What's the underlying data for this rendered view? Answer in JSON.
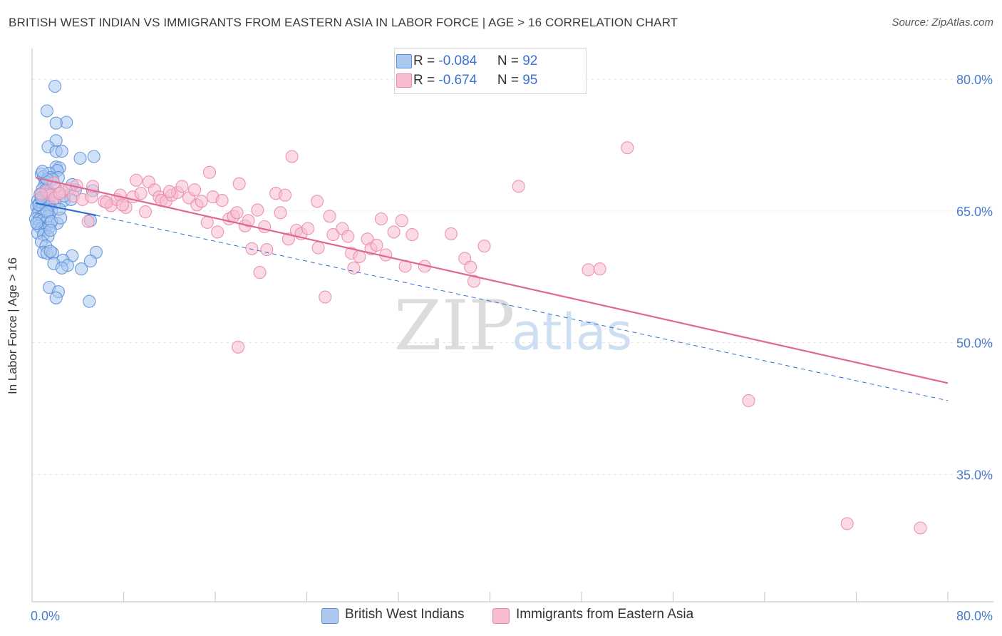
{
  "header": {
    "title": "BRITISH WEST INDIAN VS IMMIGRANTS FROM EASTERN ASIA IN LABOR FORCE | AGE > 16 CORRELATION CHART",
    "source": "Source: ZipAtlas.com"
  },
  "legend": {
    "series1": {
      "r_label": "R = ",
      "r_value": "-0.084",
      "n_label": "N = ",
      "n_value": "92"
    },
    "series2": {
      "r_label": "R = ",
      "r_value": "-0.674",
      "n_label": "N = ",
      "n_value": "95"
    }
  },
  "watermark": {
    "zip": "ZIP",
    "atlas": "atlas"
  },
  "colors": {
    "blue_fill": "#aac8f0",
    "blue_stroke": "#5b8fd8",
    "blue_line": "#2f6fd0",
    "pink_fill": "#f7bcd0",
    "pink_stroke": "#e889ab",
    "pink_line": "#e0678f",
    "axis_text": "#4a7bd0"
  },
  "chart_data": {
    "type": "scatter",
    "title": "BRITISH WEST INDIAN VS IMMIGRANTS FROM EASTERN ASIA IN LABOR FORCE | AGE > 16 CORRELATION CHART",
    "xlabel": "",
    "ylabel": "In Labor Force | Age > 16",
    "xlim": [
      0,
      80
    ],
    "ylim": [
      20.5,
      83.5
    ],
    "x_tick_labels": [
      "0.0%",
      "80.0%"
    ],
    "y_ticks": [
      35,
      50,
      65,
      80
    ],
    "y_tick_labels": [
      "35.0%",
      "50.0%",
      "65.0%",
      "80.0%"
    ],
    "grid": true,
    "series": [
      {
        "name": "British West Indians",
        "r": -0.084,
        "n": 92,
        "points": [
          [
            2.0,
            79.2
          ],
          [
            1.3,
            76.4
          ],
          [
            3.0,
            75.1
          ],
          [
            2.1,
            75.0
          ],
          [
            2.1,
            73.0
          ],
          [
            1.4,
            72.3
          ],
          [
            2.1,
            71.8
          ],
          [
            2.6,
            71.8
          ],
          [
            4.2,
            71.0
          ],
          [
            5.4,
            71.2
          ],
          [
            2.1,
            70.0
          ],
          [
            2.4,
            69.9
          ],
          [
            2.2,
            69.6
          ],
          [
            0.8,
            69.2
          ],
          [
            1.0,
            68.9
          ],
          [
            1.5,
            69.3
          ],
          [
            1.6,
            68.8
          ],
          [
            2.3,
            68.8
          ],
          [
            1.8,
            68.6
          ],
          [
            1.2,
            68.3
          ],
          [
            1.1,
            68.0
          ],
          [
            0.9,
            67.5
          ],
          [
            1.2,
            67.4
          ],
          [
            1.5,
            67.2
          ],
          [
            3.8,
            67.4
          ],
          [
            3.5,
            68.0
          ],
          [
            5.3,
            67.3
          ],
          [
            0.7,
            66.9
          ],
          [
            1.0,
            66.4
          ],
          [
            1.4,
            66.9
          ],
          [
            0.5,
            66.2
          ],
          [
            0.7,
            66.0
          ],
          [
            1.0,
            65.8
          ],
          [
            1.4,
            65.9
          ],
          [
            1.8,
            66.1
          ],
          [
            2.0,
            65.9
          ],
          [
            2.8,
            66.2
          ],
          [
            3.4,
            66.3
          ],
          [
            0.4,
            65.5
          ],
          [
            0.6,
            65.0
          ],
          [
            0.9,
            65.3
          ],
          [
            1.2,
            65.2
          ],
          [
            1.5,
            65.6
          ],
          [
            1.7,
            65.1
          ],
          [
            0.5,
            64.7
          ],
          [
            0.8,
            64.4
          ],
          [
            1.1,
            64.7
          ],
          [
            1.4,
            64.4
          ],
          [
            0.3,
            64.1
          ],
          [
            0.6,
            64.0
          ],
          [
            0.9,
            63.9
          ],
          [
            1.2,
            63.7
          ],
          [
            1.6,
            63.6
          ],
          [
            2.2,
            63.6
          ],
          [
            5.1,
            63.9
          ],
          [
            0.6,
            63.3
          ],
          [
            0.8,
            63.0
          ],
          [
            1.1,
            62.9
          ],
          [
            1.5,
            63.1
          ],
          [
            0.5,
            62.5
          ],
          [
            1.0,
            62.3
          ],
          [
            1.4,
            62.1
          ],
          [
            0.8,
            61.5
          ],
          [
            1.2,
            61.0
          ],
          [
            1.0,
            60.3
          ],
          [
            1.3,
            60.2
          ],
          [
            1.8,
            60.2
          ],
          [
            1.6,
            60.4
          ],
          [
            3.5,
            59.9
          ],
          [
            5.6,
            60.3
          ],
          [
            2.7,
            59.4
          ],
          [
            1.9,
            59.0
          ],
          [
            3.1,
            58.8
          ],
          [
            2.6,
            58.5
          ],
          [
            4.3,
            58.4
          ],
          [
            5.1,
            59.3
          ],
          [
            1.5,
            56.3
          ],
          [
            2.3,
            55.8
          ],
          [
            2.1,
            55.1
          ],
          [
            5.0,
            54.7
          ],
          [
            0.6,
            65.7
          ],
          [
            0.8,
            66.5
          ],
          [
            1.3,
            64.9
          ],
          [
            1.7,
            63.8
          ],
          [
            2.5,
            64.2
          ],
          [
            0.4,
            63.6
          ],
          [
            2.0,
            67.7
          ],
          [
            1.3,
            68.6
          ],
          [
            0.9,
            69.5
          ],
          [
            2.8,
            66.7
          ],
          [
            1.6,
            62.8
          ],
          [
            2.4,
            65.2
          ]
        ]
      },
      {
        "name": "Immigrants from Eastern Asia",
        "r": -0.674,
        "n": 95,
        "points": [
          [
            1.3,
            67.3
          ],
          [
            1.6,
            66.8
          ],
          [
            2.0,
            66.5
          ],
          [
            2.6,
            67.2
          ],
          [
            3.2,
            67.5
          ],
          [
            3.6,
            66.7
          ],
          [
            4.4,
            66.3
          ],
          [
            5.2,
            66.6
          ],
          [
            5.3,
            67.8
          ],
          [
            6.3,
            66.1
          ],
          [
            6.9,
            65.6
          ],
          [
            7.4,
            66.3
          ],
          [
            7.7,
            66.8
          ],
          [
            8.2,
            65.4
          ],
          [
            8.8,
            66.6
          ],
          [
            9.1,
            68.5
          ],
          [
            9.5,
            67.0
          ],
          [
            9.9,
            64.9
          ],
          [
            10.2,
            68.3
          ],
          [
            10.7,
            67.4
          ],
          [
            11.1,
            66.6
          ],
          [
            11.3,
            66.2
          ],
          [
            11.7,
            66.1
          ],
          [
            12.2,
            66.8
          ],
          [
            12.7,
            67.1
          ],
          [
            13.1,
            67.8
          ],
          [
            13.7,
            66.5
          ],
          [
            14.2,
            67.4
          ],
          [
            14.4,
            65.7
          ],
          [
            14.8,
            66.1
          ],
          [
            15.3,
            63.7
          ],
          [
            15.5,
            69.4
          ],
          [
            15.8,
            66.6
          ],
          [
            16.2,
            62.6
          ],
          [
            16.6,
            66.2
          ],
          [
            17.2,
            64.1
          ],
          [
            17.6,
            64.4
          ],
          [
            17.9,
            64.8
          ],
          [
            18.1,
            68.1
          ],
          [
            18.6,
            63.3
          ],
          [
            18.9,
            63.9
          ],
          [
            19.2,
            60.7
          ],
          [
            19.7,
            65.1
          ],
          [
            19.9,
            58.0
          ],
          [
            20.3,
            63.2
          ],
          [
            20.5,
            60.6
          ],
          [
            21.3,
            67.0
          ],
          [
            21.7,
            64.8
          ],
          [
            22.1,
            66.8
          ],
          [
            22.4,
            61.8
          ],
          [
            22.7,
            71.2
          ],
          [
            23.1,
            62.8
          ],
          [
            23.5,
            62.4
          ],
          [
            24.1,
            63.0
          ],
          [
            24.9,
            66.1
          ],
          [
            25.0,
            60.8
          ],
          [
            25.6,
            55.2
          ],
          [
            26.0,
            64.4
          ],
          [
            26.3,
            62.3
          ],
          [
            27.1,
            63.0
          ],
          [
            27.6,
            62.1
          ],
          [
            27.9,
            60.2
          ],
          [
            28.1,
            58.5
          ],
          [
            28.6,
            59.8
          ],
          [
            29.3,
            61.8
          ],
          [
            29.6,
            60.7
          ],
          [
            30.1,
            61.1
          ],
          [
            30.5,
            64.1
          ],
          [
            30.9,
            60.0
          ],
          [
            31.6,
            62.6
          ],
          [
            32.3,
            63.9
          ],
          [
            32.6,
            58.7
          ],
          [
            33.2,
            62.3
          ],
          [
            34.3,
            58.7
          ],
          [
            36.6,
            62.4
          ],
          [
            37.8,
            59.6
          ],
          [
            38.3,
            58.6
          ],
          [
            38.6,
            57.0
          ],
          [
            39.5,
            61.0
          ],
          [
            42.5,
            67.8
          ],
          [
            48.6,
            58.3
          ],
          [
            49.6,
            58.4
          ],
          [
            52.0,
            72.2
          ],
          [
            18.0,
            49.5
          ],
          [
            62.6,
            43.4
          ],
          [
            71.2,
            29.4
          ],
          [
            77.6,
            28.9
          ],
          [
            2.4,
            67.0
          ],
          [
            4.9,
            63.8
          ],
          [
            3.9,
            67.9
          ],
          [
            6.5,
            66.0
          ],
          [
            1.9,
            68.2
          ],
          [
            0.8,
            66.9
          ],
          [
            7.9,
            65.7
          ],
          [
            12.0,
            67.2
          ]
        ]
      }
    ],
    "trend_lines": [
      {
        "series": "British West Indians",
        "style": "solid",
        "x": [
          0.3,
          5.6
        ],
        "y": [
          65.9,
          64.5
        ]
      },
      {
        "series": "British West Indians",
        "style": "dashed",
        "x": [
          5.6,
          80.0
        ],
        "y": [
          64.5,
          43.4
        ]
      },
      {
        "series": "Immigrants from Eastern Asia",
        "style": "solid",
        "x": [
          0.3,
          80.0
        ],
        "y": [
          68.8,
          45.4
        ]
      }
    ]
  },
  "bottom_legend": {
    "series1_label": "British West Indians",
    "series2_label": "Immigrants from Eastern Asia"
  }
}
